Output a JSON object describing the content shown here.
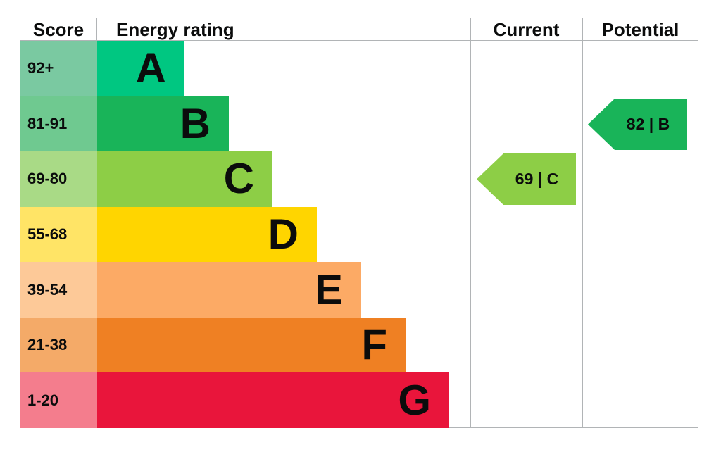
{
  "header": {
    "score": "Score",
    "energy_rating": "Energy rating",
    "current": "Current",
    "potential": "Potential"
  },
  "bands": [
    {
      "score": "92+",
      "letter": "A",
      "color": "#00c781",
      "score_bg": "#7ac9a1"
    },
    {
      "score": "81-91",
      "letter": "B",
      "color": "#19b459",
      "score_bg": "#6fc990"
    },
    {
      "score": "69-80",
      "letter": "C",
      "color": "#8dce46",
      "score_bg": "#a9da86"
    },
    {
      "score": "55-68",
      "letter": "D",
      "color": "#ffd500",
      "score_bg": "#ffe466"
    },
    {
      "score": "39-54",
      "letter": "E",
      "color": "#fcaa65",
      "score_bg": "#fdc998"
    },
    {
      "score": "21-38",
      "letter": "F",
      "color": "#ef8023",
      "score_bg": "#f4aa68"
    },
    {
      "score": "1-20",
      "letter": "G",
      "color": "#e9153b",
      "score_bg": "#f47d8d"
    }
  ],
  "current": {
    "label": "69 | C",
    "value": 69,
    "band": "C",
    "color": "#8dce46",
    "row_index": 2
  },
  "potential": {
    "label": "82 | B",
    "value": 82,
    "band": "B",
    "color": "#19b459",
    "row_index": 1
  },
  "border_color": "#b1b4b6",
  "chart_data": {
    "type": "bar",
    "title": "Energy rating (EPC band chart)",
    "categories": [
      "A",
      "B",
      "C",
      "D",
      "E",
      "F",
      "G"
    ],
    "score_ranges": [
      "92+",
      "81-91",
      "69-80",
      "55-68",
      "39-54",
      "21-38",
      "1-20"
    ],
    "band_colors": [
      "#00c781",
      "#19b459",
      "#8dce46",
      "#ffd500",
      "#fcaa65",
      "#ef8023",
      "#e9153b"
    ],
    "bar_lengths_relative": [
      1,
      1.5,
      2,
      2.5,
      3,
      3.5,
      4
    ],
    "grid": false,
    "legend_position": "none",
    "columns": [
      "Score",
      "Energy rating",
      "Current",
      "Potential"
    ],
    "markers": [
      {
        "name": "Current",
        "value": 69,
        "band": "C",
        "color": "#8dce46"
      },
      {
        "name": "Potential",
        "value": 82,
        "band": "B",
        "color": "#19b459"
      }
    ]
  }
}
